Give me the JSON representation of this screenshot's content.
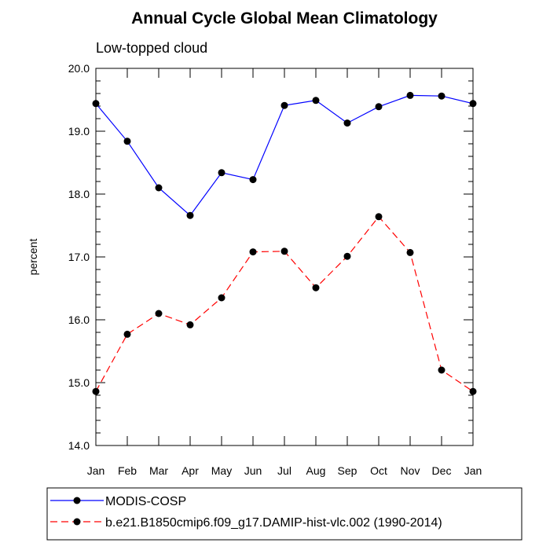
{
  "chart_data": {
    "type": "line",
    "title": "Annual Cycle Global Mean Climatology",
    "subtitle": "Low-topped cloud",
    "xlabel": "",
    "ylabel": "percent",
    "categories": [
      "Jan",
      "Feb",
      "Mar",
      "Apr",
      "May",
      "Jun",
      "Jul",
      "Aug",
      "Sep",
      "Oct",
      "Nov",
      "Dec",
      "Jan"
    ],
    "ylim": [
      14.0,
      20.0
    ],
    "yticks": [
      "14.0",
      "15.0",
      "16.0",
      "17.0",
      "18.0",
      "19.0",
      "20.0"
    ],
    "grid": false,
    "legend_position": "bottom-left",
    "series": [
      {
        "name": "MODIS-COSP",
        "color": "#0000ff",
        "line_style": "solid",
        "marker": "filled-circle",
        "values": [
          19.44,
          18.84,
          18.1,
          17.66,
          18.34,
          18.23,
          19.41,
          19.49,
          19.13,
          19.39,
          19.57,
          19.56,
          19.44
        ]
      },
      {
        "name": "b.e21.B1850cmip6.f09_g17.DAMIP-hist-vlc.002 (1990-2014)",
        "color": "#ff0000",
        "line_style": "dashed",
        "marker": "filled-circle",
        "values": [
          14.86,
          15.77,
          16.1,
          15.92,
          16.35,
          17.08,
          17.09,
          16.51,
          17.01,
          17.64,
          17.07,
          15.2,
          14.86
        ]
      }
    ]
  }
}
